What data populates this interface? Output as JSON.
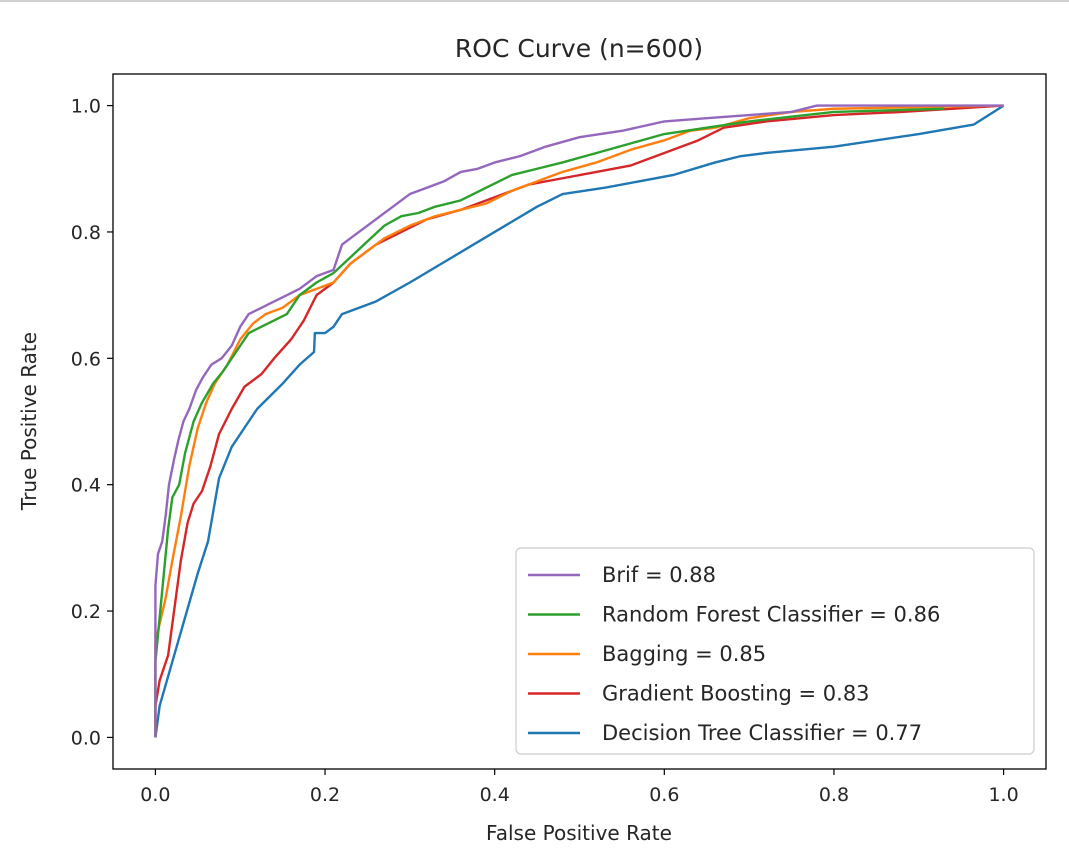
{
  "chart_data": {
    "type": "line",
    "title": "ROC Curve (n=600)",
    "xlabel": "False Positive Rate",
    "ylabel": "True Positive Rate",
    "xlim": [
      -0.05,
      1.05
    ],
    "ylim": [
      -0.05,
      1.05
    ],
    "xticks": [
      0.0,
      0.2,
      0.4,
      0.6,
      0.8,
      1.0
    ],
    "yticks": [
      0.0,
      0.2,
      0.4,
      0.6,
      0.8,
      1.0
    ],
    "tick_labels_x": [
      "0.0",
      "0.2",
      "0.4",
      "0.6",
      "0.8",
      "1.0"
    ],
    "tick_labels_y": [
      "0.0",
      "0.2",
      "0.4",
      "0.6",
      "0.8",
      "1.0"
    ],
    "grid": false,
    "legend_position": "lower-right",
    "series": [
      {
        "name": "Brif = 0.88",
        "color": "#9467bd",
        "points": [
          [
            0,
            0
          ],
          [
            0.0,
            0.24
          ],
          [
            0.003,
            0.29
          ],
          [
            0.008,
            0.31
          ],
          [
            0.012,
            0.35
          ],
          [
            0.016,
            0.4
          ],
          [
            0.022,
            0.44
          ],
          [
            0.027,
            0.47
          ],
          [
            0.033,
            0.5
          ],
          [
            0.04,
            0.52
          ],
          [
            0.048,
            0.55
          ],
          [
            0.056,
            0.57
          ],
          [
            0.066,
            0.59
          ],
          [
            0.078,
            0.6
          ],
          [
            0.09,
            0.62
          ],
          [
            0.1,
            0.65
          ],
          [
            0.11,
            0.67
          ],
          [
            0.125,
            0.68
          ],
          [
            0.14,
            0.69
          ],
          [
            0.155,
            0.7
          ],
          [
            0.17,
            0.71
          ],
          [
            0.19,
            0.73
          ],
          [
            0.21,
            0.74
          ],
          [
            0.22,
            0.78
          ],
          [
            0.24,
            0.8
          ],
          [
            0.26,
            0.82
          ],
          [
            0.28,
            0.84
          ],
          [
            0.3,
            0.86
          ],
          [
            0.32,
            0.87
          ],
          [
            0.34,
            0.88
          ],
          [
            0.36,
            0.895
          ],
          [
            0.38,
            0.9
          ],
          [
            0.4,
            0.91
          ],
          [
            0.43,
            0.92
          ],
          [
            0.46,
            0.935
          ],
          [
            0.5,
            0.95
          ],
          [
            0.55,
            0.96
          ],
          [
            0.6,
            0.975
          ],
          [
            0.65,
            0.98
          ],
          [
            0.7,
            0.985
          ],
          [
            0.75,
            0.99
          ],
          [
            0.78,
            1.0
          ],
          [
            1.0,
            1.0
          ]
        ]
      },
      {
        "name": "Random Forest Classifier = 0.86",
        "color": "#2ca02c",
        "points": [
          [
            0,
            0
          ],
          [
            0.0,
            0.12
          ],
          [
            0.005,
            0.19
          ],
          [
            0.01,
            0.26
          ],
          [
            0.015,
            0.33
          ],
          [
            0.02,
            0.38
          ],
          [
            0.028,
            0.4
          ],
          [
            0.035,
            0.45
          ],
          [
            0.045,
            0.5
          ],
          [
            0.055,
            0.53
          ],
          [
            0.068,
            0.56
          ],
          [
            0.08,
            0.58
          ],
          [
            0.095,
            0.61
          ],
          [
            0.11,
            0.64
          ],
          [
            0.125,
            0.65
          ],
          [
            0.14,
            0.66
          ],
          [
            0.155,
            0.67
          ],
          [
            0.17,
            0.7
          ],
          [
            0.19,
            0.72
          ],
          [
            0.21,
            0.735
          ],
          [
            0.23,
            0.76
          ],
          [
            0.25,
            0.785
          ],
          [
            0.27,
            0.81
          ],
          [
            0.29,
            0.825
          ],
          [
            0.31,
            0.83
          ],
          [
            0.33,
            0.84
          ],
          [
            0.36,
            0.85
          ],
          [
            0.39,
            0.87
          ],
          [
            0.42,
            0.89
          ],
          [
            0.45,
            0.9
          ],
          [
            0.48,
            0.91
          ],
          [
            0.52,
            0.925
          ],
          [
            0.56,
            0.94
          ],
          [
            0.6,
            0.955
          ],
          [
            0.65,
            0.965
          ],
          [
            0.7,
            0.975
          ],
          [
            0.8,
            0.99
          ],
          [
            0.93,
            0.995
          ]
        ]
      },
      {
        "name": "Bagging = 0.85",
        "color": "#ff7f0e",
        "points": [
          [
            0,
            0
          ],
          [
            0.0,
            0.15
          ],
          [
            0.005,
            0.18
          ],
          [
            0.012,
            0.22
          ],
          [
            0.02,
            0.28
          ],
          [
            0.03,
            0.35
          ],
          [
            0.04,
            0.43
          ],
          [
            0.05,
            0.49
          ],
          [
            0.06,
            0.53
          ],
          [
            0.07,
            0.56
          ],
          [
            0.085,
            0.59
          ],
          [
            0.1,
            0.63
          ],
          [
            0.115,
            0.655
          ],
          [
            0.13,
            0.67
          ],
          [
            0.15,
            0.68
          ],
          [
            0.17,
            0.7
          ],
          [
            0.19,
            0.71
          ],
          [
            0.21,
            0.72
          ],
          [
            0.23,
            0.75
          ],
          [
            0.25,
            0.77
          ],
          [
            0.27,
            0.79
          ],
          [
            0.3,
            0.81
          ],
          [
            0.33,
            0.825
          ],
          [
            0.36,
            0.835
          ],
          [
            0.39,
            0.845
          ],
          [
            0.42,
            0.865
          ],
          [
            0.45,
            0.88
          ],
          [
            0.48,
            0.895
          ],
          [
            0.52,
            0.91
          ],
          [
            0.56,
            0.93
          ],
          [
            0.6,
            0.945
          ],
          [
            0.63,
            0.96
          ],
          [
            0.66,
            0.965
          ],
          [
            0.7,
            0.98
          ],
          [
            0.75,
            0.99
          ],
          [
            0.8,
            0.995
          ],
          [
            1.0,
            1.0
          ]
        ]
      },
      {
        "name": "Gradient Boosting = 0.83",
        "color": "#d62728",
        "points": [
          [
            0,
            0
          ],
          [
            0.0,
            0.05
          ],
          [
            0.005,
            0.09
          ],
          [
            0.01,
            0.11
          ],
          [
            0.015,
            0.13
          ],
          [
            0.02,
            0.18
          ],
          [
            0.025,
            0.23
          ],
          [
            0.03,
            0.28
          ],
          [
            0.038,
            0.34
          ],
          [
            0.045,
            0.37
          ],
          [
            0.055,
            0.39
          ],
          [
            0.065,
            0.43
          ],
          [
            0.075,
            0.48
          ],
          [
            0.09,
            0.52
          ],
          [
            0.105,
            0.555
          ],
          [
            0.125,
            0.575
          ],
          [
            0.14,
            0.6
          ],
          [
            0.16,
            0.63
          ],
          [
            0.175,
            0.66
          ],
          [
            0.19,
            0.7
          ],
          [
            0.21,
            0.72
          ],
          [
            0.23,
            0.75
          ],
          [
            0.26,
            0.78
          ],
          [
            0.29,
            0.8
          ],
          [
            0.32,
            0.82
          ],
          [
            0.36,
            0.835
          ],
          [
            0.4,
            0.855
          ],
          [
            0.44,
            0.875
          ],
          [
            0.48,
            0.885
          ],
          [
            0.52,
            0.895
          ],
          [
            0.56,
            0.905
          ],
          [
            0.6,
            0.925
          ],
          [
            0.64,
            0.945
          ],
          [
            0.67,
            0.965
          ],
          [
            0.72,
            0.975
          ],
          [
            0.8,
            0.985
          ],
          [
            0.88,
            0.99
          ],
          [
            1.0,
            1.0
          ]
        ]
      },
      {
        "name": "Decision Tree Classifier = 0.77",
        "color": "#1f77b4",
        "points": [
          [
            0,
            0
          ],
          [
            0.005,
            0.05
          ],
          [
            0.02,
            0.12
          ],
          [
            0.035,
            0.19
          ],
          [
            0.05,
            0.26
          ],
          [
            0.062,
            0.31
          ],
          [
            0.075,
            0.41
          ],
          [
            0.09,
            0.46
          ],
          [
            0.12,
            0.52
          ],
          [
            0.15,
            0.56
          ],
          [
            0.17,
            0.59
          ],
          [
            0.187,
            0.61
          ],
          [
            0.188,
            0.64
          ],
          [
            0.2,
            0.64
          ],
          [
            0.21,
            0.65
          ],
          [
            0.22,
            0.67
          ],
          [
            0.26,
            0.69
          ],
          [
            0.3,
            0.72
          ],
          [
            0.35,
            0.76
          ],
          [
            0.4,
            0.8
          ],
          [
            0.45,
            0.84
          ],
          [
            0.48,
            0.86
          ],
          [
            0.53,
            0.87
          ],
          [
            0.61,
            0.89
          ],
          [
            0.66,
            0.91
          ],
          [
            0.69,
            0.92
          ],
          [
            0.72,
            0.925
          ],
          [
            0.8,
            0.935
          ],
          [
            0.9,
            0.955
          ],
          [
            0.965,
            0.97
          ],
          [
            1.0,
            1.0
          ]
        ]
      }
    ]
  }
}
